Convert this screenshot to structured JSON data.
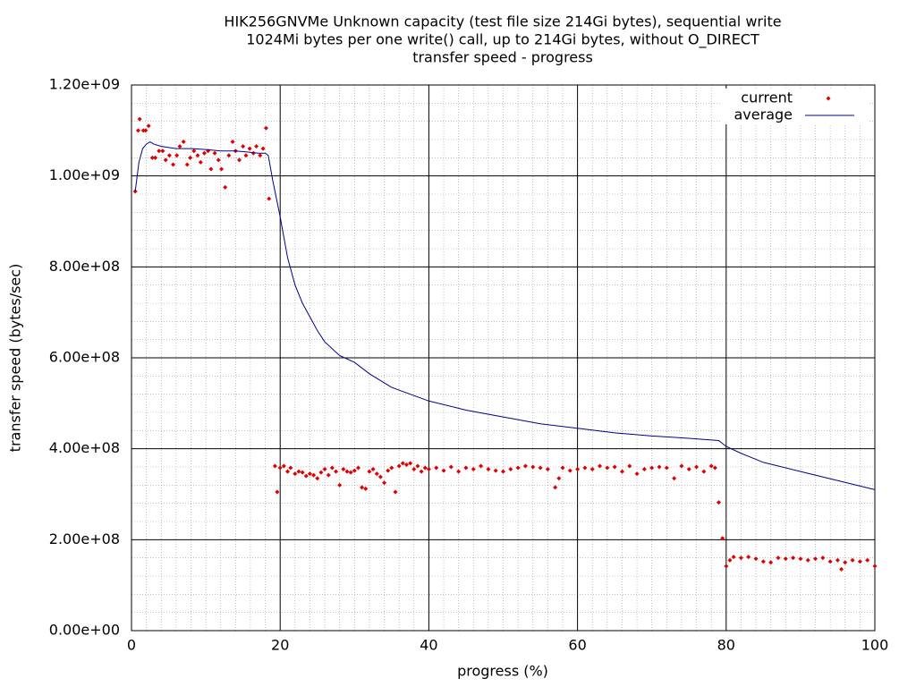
{
  "chart_data": {
    "type": "scatter",
    "title": [
      "HIK256GNVMe Unknown capacity (test file size 214Gi bytes), sequential write",
      "1024Mi bytes per one write() call, up to 214Gi bytes, without O_DIRECT",
      "transfer speed - progress"
    ],
    "x_label": "progress (%)",
    "y_label": "transfer speed (bytes/sec)",
    "xlim": [
      0,
      100
    ],
    "xticks": [
      0,
      20,
      40,
      60,
      80,
      100
    ],
    "ylim": [
      0,
      1200000000
    ],
    "yticks": [
      {
        "value": 0,
        "label": "0.00e+00"
      },
      {
        "value": 200000000,
        "label": "2.00e+08"
      },
      {
        "value": 400000000,
        "label": "4.00e+08"
      },
      {
        "value": 600000000,
        "label": "6.00e+08"
      },
      {
        "value": 800000000,
        "label": "8.00e+08"
      },
      {
        "value": 1000000000,
        "label": "1.00e+09"
      },
      {
        "value": 1200000000,
        "label": "1.20e+09"
      }
    ],
    "grid": true,
    "mxtics": 10,
    "mytics": 5,
    "legend": "top-right",
    "series": [
      {
        "name": "current",
        "type": "scatter",
        "color": "#e00000",
        "x": [
          0.5,
          0.9,
          1.1,
          1.6,
          1.9,
          2.3,
          2.8,
          3.2,
          3.7,
          4.2,
          4.6,
          5.1,
          5.6,
          6.1,
          6.5,
          7.0,
          7.5,
          7.9,
          8.4,
          8.9,
          9.3,
          9.8,
          10.3,
          10.7,
          11.2,
          11.7,
          12.1,
          12.6,
          13.1,
          13.6,
          14.0,
          14.5,
          15.0,
          15.4,
          15.9,
          16.4,
          16.8,
          17.3,
          17.7,
          18.1,
          18.5,
          19.3,
          19.6,
          20.0,
          20.5,
          21.0,
          21.4,
          22.0,
          22.5,
          23.0,
          23.5,
          24.0,
          24.5,
          25.0,
          25.5,
          26.0,
          26.5,
          27.0,
          27.5,
          28.0,
          28.5,
          29.0,
          29.5,
          30.0,
          30.5,
          31.0,
          31.5,
          32.0,
          32.5,
          33.0,
          33.5,
          34.0,
          34.5,
          35.0,
          35.5,
          36.0,
          36.5,
          37.0,
          37.5,
          38.0,
          38.5,
          39.0,
          39.5,
          40,
          41,
          42,
          43,
          44,
          45,
          46,
          47,
          48,
          49,
          50,
          51,
          52,
          53,
          54,
          55,
          56,
          57,
          57.5,
          58,
          59,
          60,
          61,
          62,
          63,
          64,
          65,
          66,
          67,
          68,
          69,
          70,
          71,
          72,
          73,
          74,
          75,
          76,
          77,
          78,
          78.5,
          79,
          79.5,
          80,
          80.5,
          81,
          82,
          83,
          84,
          85,
          86,
          87,
          88,
          89,
          90,
          91,
          92,
          93,
          94,
          95,
          95.5,
          96,
          97,
          98,
          99,
          100
        ],
        "values": [
          966000000.0,
          1100000000.0,
          1125000000.0,
          1100000000.0,
          1100000000.0,
          1110000000.0,
          1040000000.0,
          1040000000.0,
          1055000000.0,
          1055000000.0,
          1035000000.0,
          1045000000.0,
          1025000000.0,
          1045000000.0,
          1065000000.0,
          1075000000.0,
          1025000000.0,
          1040000000.0,
          1055000000.0,
          1045000000.0,
          1030000000.0,
          1050000000.0,
          1055000000.0,
          1015000000.0,
          1050000000.0,
          1035000000.0,
          1015000000.0,
          975000000.0,
          1045000000.0,
          1075000000.0,
          1055000000.0,
          1035000000.0,
          1065000000.0,
          1045000000.0,
          1060000000.0,
          1050000000.0,
          1065000000.0,
          1045000000.0,
          1060000000.0,
          1105000000.0,
          950000000.0,
          362000000.0,
          305000000.0,
          358000000.0,
          362000000.0,
          350000000.0,
          358000000.0,
          345000000.0,
          350000000.0,
          348000000.0,
          340000000.0,
          345000000.0,
          342000000.0,
          335000000.0,
          348000000.0,
          355000000.0,
          342000000.0,
          358000000.0,
          350000000.0,
          320000000.0,
          355000000.0,
          350000000.0,
          348000000.0,
          352000000.0,
          358000000.0,
          315000000.0,
          312000000.0,
          350000000.0,
          355000000.0,
          345000000.0,
          338000000.0,
          325000000.0,
          352000000.0,
          358000000.0,
          305000000.0,
          362000000.0,
          368000000.0,
          365000000.0,
          368000000.0,
          355000000.0,
          362000000.0,
          350000000.0,
          358000000.0,
          355000000.0,
          358000000.0,
          352000000.0,
          360000000.0,
          350000000.0,
          358000000.0,
          355000000.0,
          362000000.0,
          355000000.0,
          352000000.0,
          350000000.0,
          355000000.0,
          358000000.0,
          362000000.0,
          360000000.0,
          358000000.0,
          355000000.0,
          315000000.0,
          335000000.0,
          358000000.0,
          352000000.0,
          355000000.0,
          358000000.0,
          355000000.0,
          362000000.0,
          358000000.0,
          360000000.0,
          350000000.0,
          362000000.0,
          345000000.0,
          355000000.0,
          358000000.0,
          360000000.0,
          358000000.0,
          335000000.0,
          362000000.0,
          355000000.0,
          360000000.0,
          350000000.0,
          362000000.0,
          358000000.0,
          282000000.0,
          203000000.0,
          142000000.0,
          155000000.0,
          162000000.0,
          160000000.0,
          162000000.0,
          158000000.0,
          152000000.0,
          150000000.0,
          160000000.0,
          158000000.0,
          160000000.0,
          158000000.0,
          155000000.0,
          158000000.0,
          160000000.0,
          152000000.0,
          155000000.0,
          135000000.0,
          150000000.0,
          155000000.0,
          152000000.0,
          155000000.0,
          142000000.0
        ]
      },
      {
        "name": "average",
        "type": "line",
        "color": "#00008b",
        "x": [
          0.5,
          1.0,
          1.5,
          2.0,
          2.5,
          3.0,
          4,
          6,
          8,
          10,
          12,
          14,
          16,
          17,
          18,
          18.4,
          19,
          20,
          21,
          22,
          23,
          24,
          25,
          26,
          28,
          30,
          32,
          35,
          40,
          45,
          50,
          55,
          60,
          65,
          70,
          75,
          79,
          80,
          82,
          85,
          90,
          95,
          100
        ],
        "values": [
          966000000.0,
          1030000000.0,
          1060000000.0,
          1070000000.0,
          1075000000.0,
          1070000000.0,
          1065000000.0,
          1060000000.0,
          1060000000.0,
          1058000000.0,
          1055000000.0,
          1055000000.0,
          1052000000.0,
          1050000000.0,
          1050000000.0,
          1045000000.0,
          990000000.0,
          910000000.0,
          820000000.0,
          760000000.0,
          720000000.0,
          690000000.0,
          660000000.0,
          635000000.0,
          605000000.0,
          590000000.0,
          565000000.0,
          535000000.0,
          505000000.0,
          485000000.0,
          470000000.0,
          455000000.0,
          445000000.0,
          435000000.0,
          428000000.0,
          423000000.0,
          418000000.0,
          405000000.0,
          390000000.0,
          370000000.0,
          350000000.0,
          330000000.0,
          310000000.0
        ]
      }
    ]
  }
}
